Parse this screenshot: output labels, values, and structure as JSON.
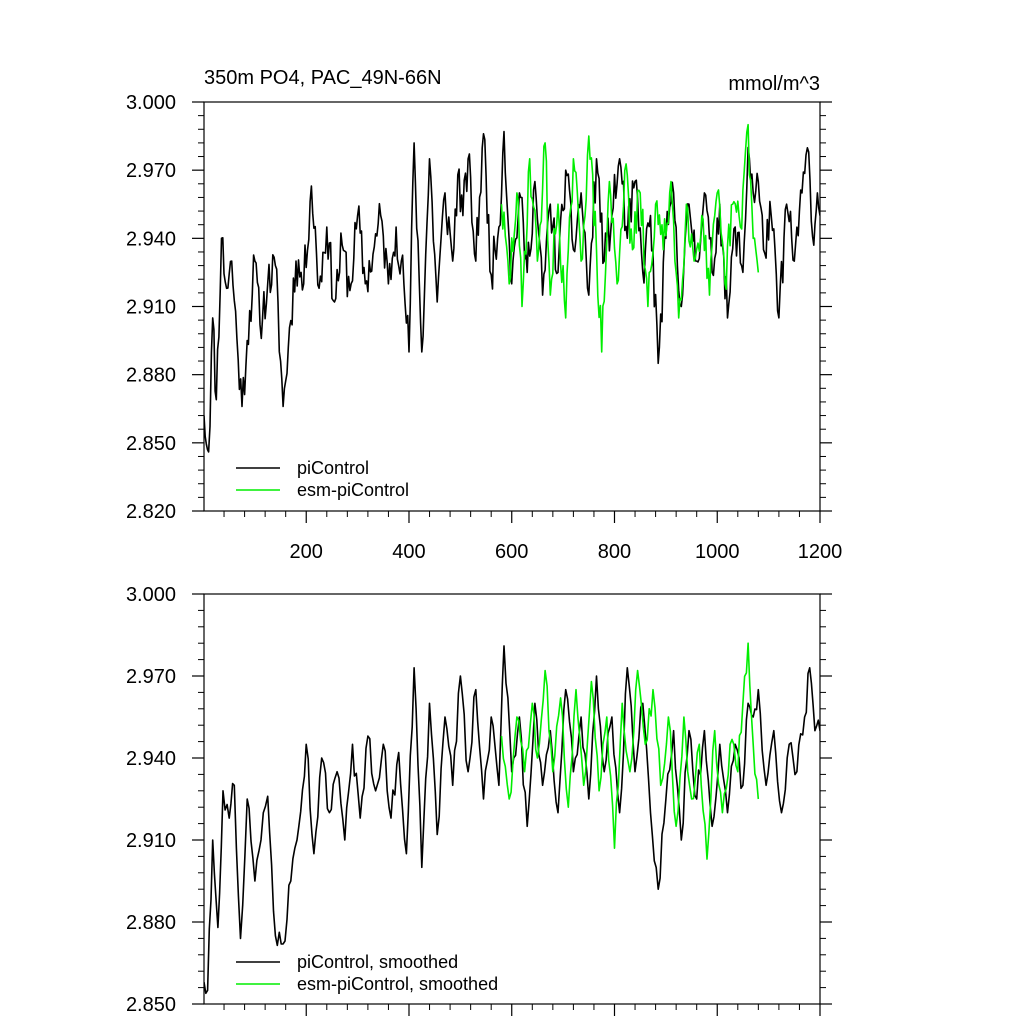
{
  "colors": {
    "piControl": "#000000",
    "esm_piControl": "#00ee00",
    "frame": "#000000",
    "background": "#ffffff"
  },
  "chart_data": [
    {
      "type": "line",
      "title": "350m PO4, PAC_49N-66N",
      "units": "mmol/m^3",
      "xlabel": "",
      "ylabel": "",
      "xlim": [
        1,
        1200
      ],
      "ylim": [
        2.82,
        3.0
      ],
      "x_ticks": [
        200,
        400,
        600,
        800,
        1000,
        1200
      ],
      "x_tick_labels": [
        "200",
        "400",
        "600",
        "800",
        "1000",
        "1200"
      ],
      "y_ticks": [
        2.82,
        2.85,
        2.88,
        2.91,
        2.94,
        2.97,
        3.0
      ],
      "y_tick_labels": [
        "2.820",
        "2.850",
        "2.880",
        "2.910",
        "2.940",
        "2.970",
        "3.000"
      ],
      "legend_position": "bottom-left",
      "series": [
        {
          "name": "piControl",
          "color": "#000000",
          "x_range": [
            1,
            1200
          ],
          "points": [
            [
              1,
              2.862
            ],
            [
              10,
              2.846
            ],
            [
              18,
              2.905
            ],
            [
              25,
              2.869
            ],
            [
              35,
              2.94
            ],
            [
              45,
              2.918
            ],
            [
              55,
              2.93
            ],
            [
              65,
              2.896
            ],
            [
              75,
              2.866
            ],
            [
              85,
              2.895
            ],
            [
              100,
              2.93
            ],
            [
              110,
              2.902
            ],
            [
              125,
              2.92
            ],
            [
              140,
              2.928
            ],
            [
              155,
              2.866
            ],
            [
              165,
              2.892
            ],
            [
              180,
              2.93
            ],
            [
              195,
              2.92
            ],
            [
              210,
              2.963
            ],
            [
              225,
              2.918
            ],
            [
              240,
              2.945
            ],
            [
              255,
              2.912
            ],
            [
              270,
              2.937
            ],
            [
              285,
              2.917
            ],
            [
              300,
              2.95
            ],
            [
              315,
              2.92
            ],
            [
              330,
              2.933
            ],
            [
              345,
              2.95
            ],
            [
              360,
              2.92
            ],
            [
              375,
              2.945
            ],
            [
              390,
              2.92
            ],
            [
              400,
              2.89
            ],
            [
              410,
              2.982
            ],
            [
              425,
              2.89
            ],
            [
              440,
              2.975
            ],
            [
              455,
              2.912
            ],
            [
              470,
              2.96
            ],
            [
              485,
              2.93
            ],
            [
              495,
              2.968
            ],
            [
              505,
              2.95
            ],
            [
              515,
              2.975
            ],
            [
              530,
              2.93
            ],
            [
              545,
              2.986
            ],
            [
              560,
              2.924
            ],
            [
              575,
              2.945
            ],
            [
              585,
              2.987
            ],
            [
              600,
              2.92
            ],
            [
              615,
              2.96
            ],
            [
              630,
              2.925
            ],
            [
              645,
              2.965
            ],
            [
              660,
              2.915
            ],
            [
              675,
              2.955
            ],
            [
              690,
              2.925
            ],
            [
              705,
              2.97
            ],
            [
              720,
              2.935
            ],
            [
              735,
              2.96
            ],
            [
              750,
              2.915
            ],
            [
              765,
              2.975
            ],
            [
              780,
              2.93
            ],
            [
              795,
              2.95
            ],
            [
              810,
              2.975
            ],
            [
              825,
              2.94
            ],
            [
              840,
              2.965
            ],
            [
              855,
              2.925
            ],
            [
              870,
              2.95
            ],
            [
              885,
              2.885
            ],
            [
              900,
              2.94
            ],
            [
              915,
              2.96
            ],
            [
              930,
              2.91
            ],
            [
              945,
              2.955
            ],
            [
              960,
              2.93
            ],
            [
              975,
              2.96
            ],
            [
              990,
              2.925
            ],
            [
              1005,
              2.955
            ],
            [
              1020,
              2.905
            ],
            [
              1035,
              2.945
            ],
            [
              1050,
              2.925
            ],
            [
              1060,
              2.98
            ],
            [
              1070,
              2.96
            ],
            [
              1080,
              2.965
            ],
            [
              1090,
              2.935
            ],
            [
              1105,
              2.95
            ],
            [
              1120,
              2.905
            ],
            [
              1135,
              2.955
            ],
            [
              1150,
              2.93
            ],
            [
              1165,
              2.96
            ],
            [
              1178,
              2.978
            ],
            [
              1188,
              2.937
            ],
            [
              1195,
              2.96
            ],
            [
              1200,
              2.95
            ]
          ]
        },
        {
          "name": "esm-piControl",
          "color": "#00ee00",
          "x_range": [
            580,
            1080
          ],
          "points": [
            [
              580,
              2.955
            ],
            [
              595,
              2.92
            ],
            [
              610,
              2.96
            ],
            [
              620,
              2.91
            ],
            [
              635,
              2.975
            ],
            [
              650,
              2.93
            ],
            [
              665,
              2.982
            ],
            [
              675,
              2.915
            ],
            [
              690,
              2.955
            ],
            [
              705,
              2.905
            ],
            [
              720,
              2.975
            ],
            [
              735,
              2.93
            ],
            [
              750,
              2.985
            ],
            [
              765,
              2.935
            ],
            [
              775,
              2.89
            ],
            [
              790,
              2.965
            ],
            [
              805,
              2.92
            ],
            [
              820,
              2.97
            ],
            [
              835,
              2.935
            ],
            [
              850,
              2.96
            ],
            [
              865,
              2.91
            ],
            [
              880,
              2.955
            ],
            [
              895,
              2.935
            ],
            [
              910,
              2.965
            ],
            [
              925,
              2.905
            ],
            [
              940,
              2.955
            ],
            [
              955,
              2.93
            ],
            [
              970,
              2.95
            ],
            [
              985,
              2.915
            ],
            [
              1000,
              2.96
            ],
            [
              1015,
              2.92
            ],
            [
              1030,
              2.955
            ],
            [
              1045,
              2.945
            ],
            [
              1060,
              2.99
            ],
            [
              1070,
              2.94
            ],
            [
              1080,
              2.925
            ]
          ]
        }
      ]
    },
    {
      "type": "line",
      "title": "",
      "xlabel": "",
      "ylabel": "",
      "xlim": [
        1,
        1200
      ],
      "ylim": [
        2.85,
        3.0
      ],
      "x_ticks": [
        200,
        400,
        600,
        800,
        1000,
        1200
      ],
      "x_tick_labels": [],
      "y_ticks": [
        2.85,
        2.88,
        2.91,
        2.94,
        2.97,
        3.0
      ],
      "y_tick_labels": [
        "2.850",
        "2.880",
        "2.910",
        "2.940",
        "2.970",
        "3.000"
      ],
      "legend_position": "bottom-left",
      "series": [
        {
          "name": "piControl, smoothed",
          "color": "#000000",
          "x_range": [
            1,
            1200
          ],
          "points": [
            [
              1,
              2.858
            ],
            [
              8,
              2.855
            ],
            [
              18,
              2.91
            ],
            [
              28,
              2.878
            ],
            [
              38,
              2.928
            ],
            [
              50,
              2.918
            ],
            [
              60,
              2.93
            ],
            [
              72,
              2.874
            ],
            [
              85,
              2.925
            ],
            [
              100,
              2.895
            ],
            [
              112,
              2.91
            ],
            [
              125,
              2.926
            ],
            [
              140,
              2.875
            ],
            [
              155,
              2.872
            ],
            [
              170,
              2.895
            ],
            [
              182,
              2.91
            ],
            [
              200,
              2.945
            ],
            [
              215,
              2.905
            ],
            [
              230,
              2.94
            ],
            [
              245,
              2.92
            ],
            [
              260,
              2.935
            ],
            [
              275,
              2.91
            ],
            [
              290,
              2.945
            ],
            [
              305,
              2.918
            ],
            [
              320,
              2.948
            ],
            [
              335,
              2.928
            ],
            [
              350,
              2.945
            ],
            [
              365,
              2.918
            ],
            [
              380,
              2.942
            ],
            [
              395,
              2.905
            ],
            [
              410,
              2.973
            ],
            [
              425,
              2.9
            ],
            [
              440,
              2.96
            ],
            [
              455,
              2.912
            ],
            [
              470,
              2.955
            ],
            [
              485,
              2.93
            ],
            [
              500,
              2.97
            ],
            [
              515,
              2.935
            ],
            [
              530,
              2.965
            ],
            [
              545,
              2.925
            ],
            [
              560,
              2.955
            ],
            [
              575,
              2.93
            ],
            [
              585,
              2.981
            ],
            [
              600,
              2.935
            ],
            [
              615,
              2.955
            ],
            [
              630,
              2.915
            ],
            [
              645,
              2.96
            ],
            [
              660,
              2.93
            ],
            [
              675,
              2.95
            ],
            [
              690,
              2.92
            ],
            [
              705,
              2.965
            ],
            [
              720,
              2.935
            ],
            [
              735,
              2.955
            ],
            [
              750,
              2.925
            ],
            [
              765,
              2.97
            ],
            [
              780,
              2.935
            ],
            [
              795,
              2.955
            ],
            [
              810,
              2.92
            ],
            [
              825,
              2.973
            ],
            [
              840,
              2.935
            ],
            [
              855,
              2.96
            ],
            [
              870,
              2.92
            ],
            [
              885,
              2.892
            ],
            [
              900,
              2.925
            ],
            [
              915,
              2.95
            ],
            [
              930,
              2.91
            ],
            [
              945,
              2.95
            ],
            [
              960,
              2.925
            ],
            [
              975,
              2.95
            ],
            [
              990,
              2.915
            ],
            [
              1005,
              2.945
            ],
            [
              1020,
              2.92
            ],
            [
              1035,
              2.945
            ],
            [
              1050,
              2.93
            ],
            [
              1060,
              2.96
            ],
            [
              1070,
              2.955
            ],
            [
              1080,
              2.965
            ],
            [
              1095,
              2.93
            ],
            [
              1110,
              2.95
            ],
            [
              1125,
              2.92
            ],
            [
              1140,
              2.945
            ],
            [
              1155,
              2.935
            ],
            [
              1170,
              2.955
            ],
            [
              1180,
              2.973
            ],
            [
              1190,
              2.95
            ],
            [
              1200,
              2.95
            ]
          ]
        },
        {
          "name": "esm-piControl, smoothed",
          "color": "#00ee00",
          "x_range": [
            580,
            1080
          ],
          "points": [
            [
              580,
              2.948
            ],
            [
              595,
              2.925
            ],
            [
              610,
              2.955
            ],
            [
              625,
              2.935
            ],
            [
              640,
              2.96
            ],
            [
              650,
              2.94
            ],
            [
              665,
              2.972
            ],
            [
              680,
              2.935
            ],
            [
              695,
              2.962
            ],
            [
              710,
              2.922
            ],
            [
              725,
              2.965
            ],
            [
              740,
              2.93
            ],
            [
              755,
              2.968
            ],
            [
              770,
              2.928
            ],
            [
              785,
              2.955
            ],
            [
              800,
              2.907
            ],
            [
              815,
              2.96
            ],
            [
              830,
              2.935
            ],
            [
              845,
              2.972
            ],
            [
              860,
              2.945
            ],
            [
              875,
              2.965
            ],
            [
              890,
              2.93
            ],
            [
              905,
              2.955
            ],
            [
              920,
              2.915
            ],
            [
              935,
              2.955
            ],
            [
              950,
              2.925
            ],
            [
              965,
              2.945
            ],
            [
              980,
              2.903
            ],
            [
              995,
              2.95
            ],
            [
              1010,
              2.92
            ],
            [
              1025,
              2.945
            ],
            [
              1040,
              2.935
            ],
            [
              1050,
              2.96
            ],
            [
              1060,
              2.982
            ],
            [
              1070,
              2.945
            ],
            [
              1080,
              2.925
            ]
          ]
        }
      ]
    }
  ]
}
